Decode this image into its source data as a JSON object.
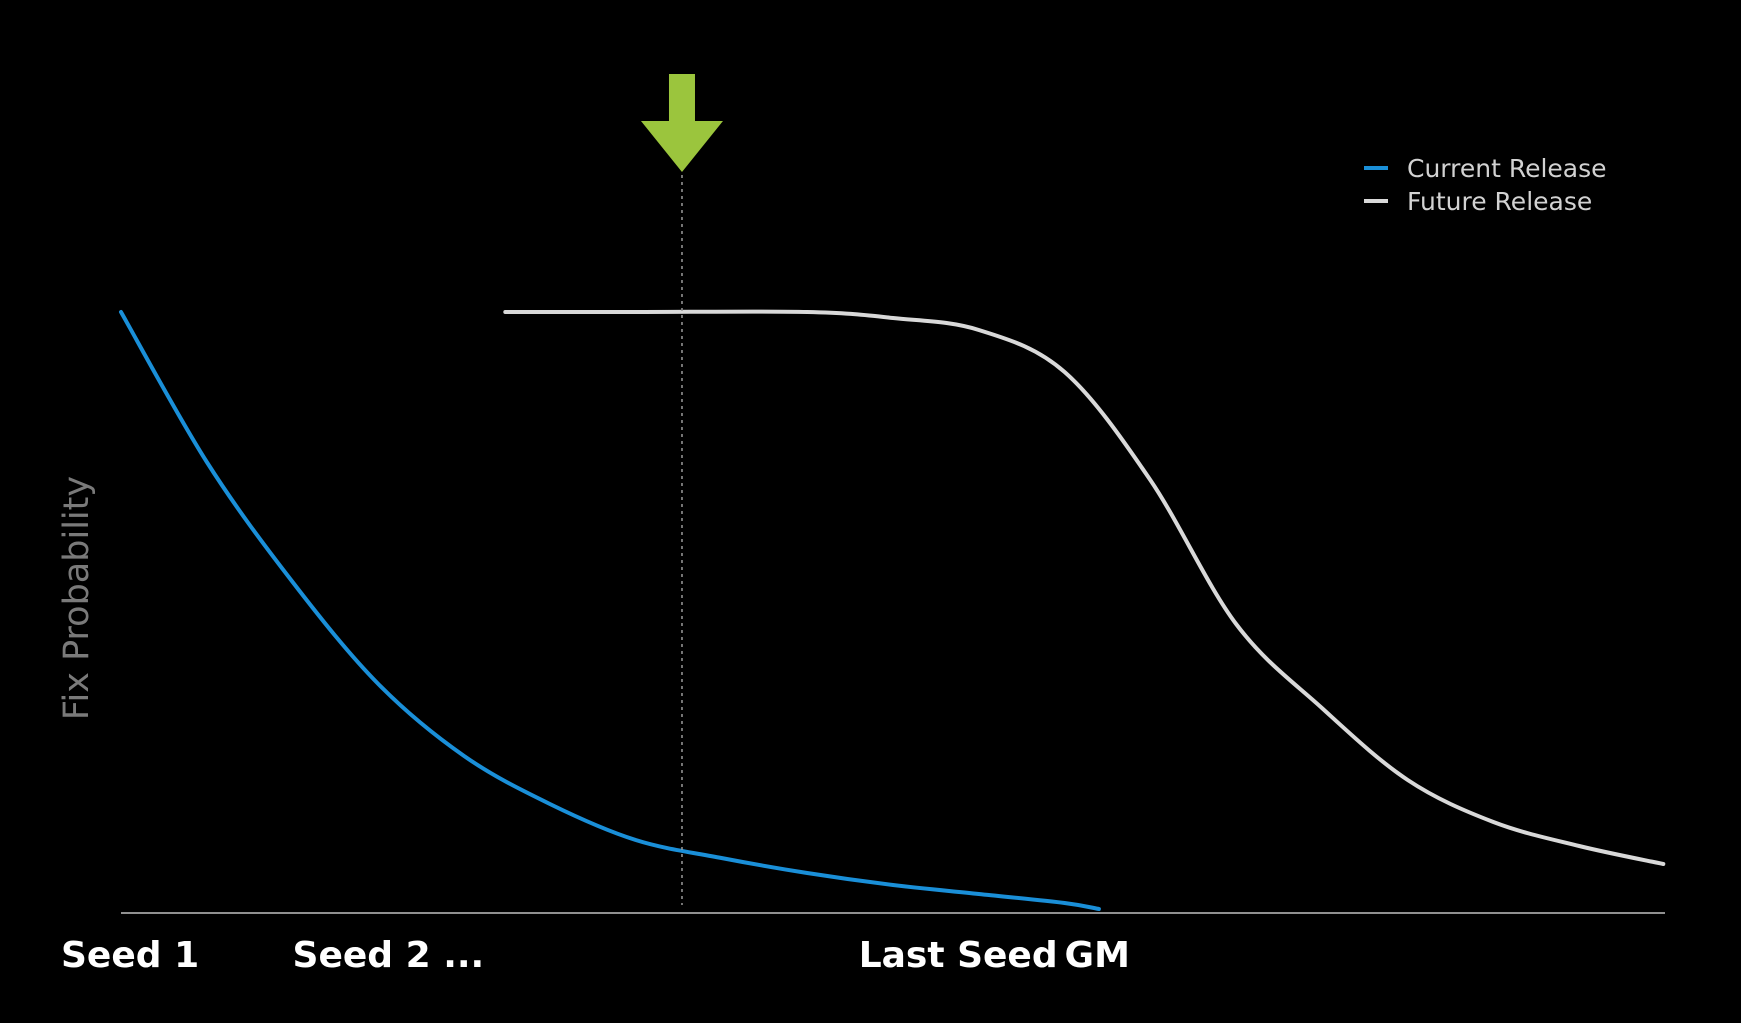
{
  "chart_data": {
    "type": "line",
    "ylabel": "Fix Probability",
    "xlabel": "",
    "title": "",
    "x_ticks": [
      {
        "label": "Seed 1",
        "x": 0
      },
      {
        "label": "Seed 2 ...",
        "x": 1
      },
      {
        "label": "Last Seed",
        "x": 4.3
      },
      {
        "label": "GM",
        "x": 5.5
      }
    ],
    "xlim": [
      0,
      9
    ],
    "ylim": [
      0,
      1
    ],
    "grid": false,
    "legend_position": "top-right",
    "marker": {
      "x": 3.27,
      "style": "dotted-line-with-down-arrow",
      "color": "#9bc53d"
    },
    "series": [
      {
        "name": "Current Release",
        "color": "#1a8fd8",
        "x": [
          0,
          0.5,
          1,
          1.5,
          2,
          2.5,
          3,
          3.5,
          4,
          4.5,
          5,
          5.5,
          5.7
        ],
        "y": [
          1.0,
          0.75,
          0.55,
          0.38,
          0.26,
          0.18,
          0.12,
          0.09,
          0.065,
          0.045,
          0.03,
          0.015,
          0.005
        ]
      },
      {
        "name": "Future Release",
        "color": "#d9d9d9",
        "x": [
          2.24,
          3,
          4,
          4.5,
          5,
          5.5,
          6,
          6.5,
          7,
          7.5,
          8,
          8.5,
          8.99
        ],
        "y": [
          1.0,
          1.0,
          1.0,
          0.99,
          0.97,
          0.9,
          0.72,
          0.48,
          0.34,
          0.22,
          0.15,
          0.11,
          0.08
        ]
      }
    ]
  }
}
